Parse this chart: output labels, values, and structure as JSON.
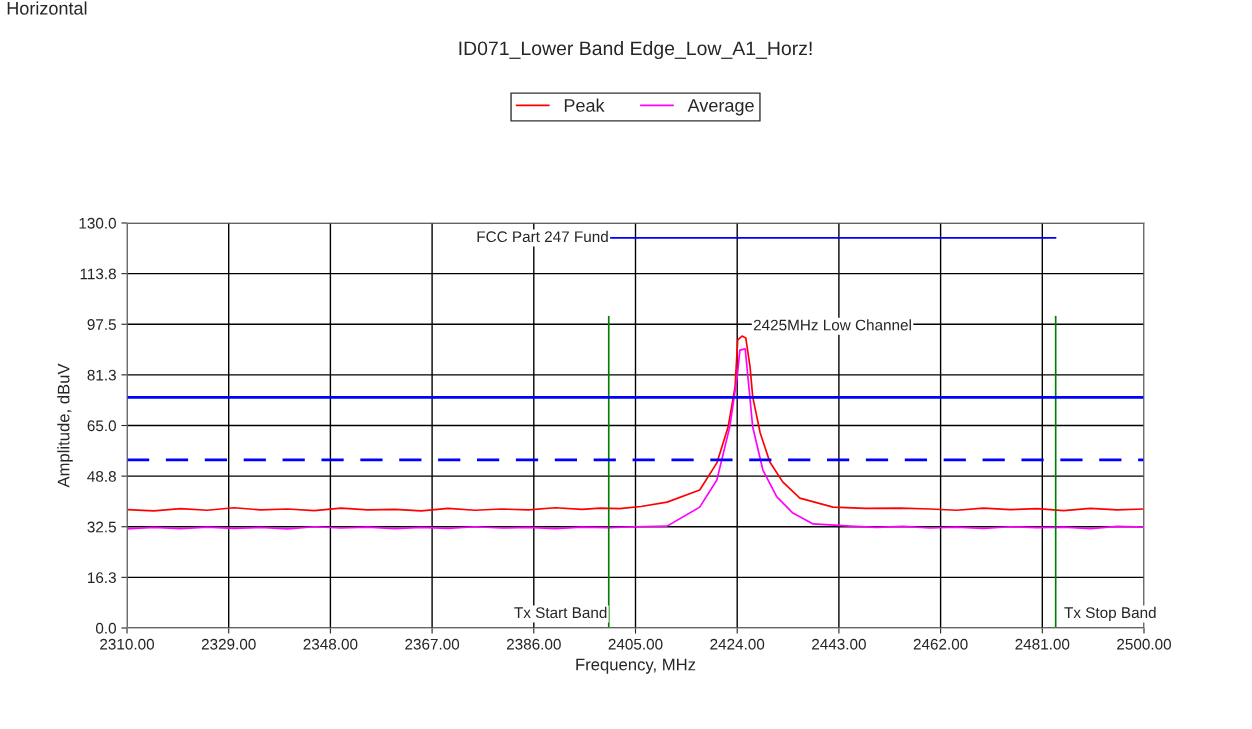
{
  "chart_data": {
    "type": "line",
    "title": "ID071_Lower Band Edge_Low_A1_Horz!",
    "xlabel": "Frequency, MHz",
    "ylabel": "Amplitude, dBuV",
    "xlim": [
      2310,
      2500
    ],
    "ylim": [
      0,
      130
    ],
    "xticks": [
      {
        "value": 2310,
        "label": "2310.00"
      },
      {
        "value": 2329,
        "label": "2329.00"
      },
      {
        "value": 2348,
        "label": "2348.00"
      },
      {
        "value": 2367,
        "label": "2367.00"
      },
      {
        "value": 2386,
        "label": "2386.00"
      },
      {
        "value": 2405,
        "label": "2405.00"
      },
      {
        "value": 2424,
        "label": "2424.00"
      },
      {
        "value": 2443,
        "label": "2443.00"
      },
      {
        "value": 2462,
        "label": "2462.00"
      },
      {
        "value": 2481,
        "label": "2481.00"
      },
      {
        "value": 2500,
        "label": "2500.00"
      }
    ],
    "yticks": [
      {
        "value": 0,
        "label": "0.0"
      },
      {
        "value": 16.25,
        "label": "16.3"
      },
      {
        "value": 32.5,
        "label": "32.5"
      },
      {
        "value": 48.75,
        "label": "48.8"
      },
      {
        "value": 65,
        "label": "65.0"
      },
      {
        "value": 81.25,
        "label": "81.3"
      },
      {
        "value": 97.5,
        "label": "97.5"
      },
      {
        "value": 113.75,
        "label": "113.8"
      },
      {
        "value": 130,
        "label": "130.0"
      }
    ],
    "grid": true,
    "legend": "top",
    "series": [
      {
        "name": "Peak",
        "color": "#ff0000",
        "x": [
          2310,
          2315,
          2320,
          2325,
          2330,
          2335,
          2340,
          2345,
          2350,
          2355,
          2360,
          2365,
          2370,
          2375,
          2380,
          2385,
          2390,
          2395,
          2398.4,
          2402,
          2406,
          2410.9,
          2417.0,
          2420.2,
          2422.3,
          2423.6,
          2424.1,
          2424.9,
          2425.6,
          2426.4,
          2426.9,
          2428.3,
          2430.1,
          2432.5,
          2435.7,
          2441.9,
          2448,
          2454.4,
          2460,
          2465,
          2470,
          2475,
          2480,
          2485,
          2490,
          2495,
          2500
        ],
        "values": [
          38.0,
          37.6,
          38.3,
          37.8,
          38.6,
          37.9,
          38.2,
          37.7,
          38.5,
          37.9,
          38.1,
          37.6,
          38.4,
          37.8,
          38.2,
          37.9,
          38.6,
          38.1,
          38.5,
          38.3,
          39.0,
          40.4,
          44.3,
          53.0,
          64.5,
          77.4,
          92.5,
          93.7,
          93.1,
          83.8,
          74.2,
          62.6,
          53.3,
          46.9,
          41.7,
          38.8,
          38.4,
          38.5,
          38.2,
          37.8,
          38.5,
          38.0,
          38.3,
          37.7,
          38.4,
          37.9,
          38.2
        ]
      },
      {
        "name": "Average",
        "color": "#ff00ff",
        "x": [
          2310,
          2315,
          2320,
          2325,
          2330,
          2335,
          2340,
          2345,
          2350,
          2355,
          2360,
          2365,
          2370,
          2375,
          2380,
          2385,
          2390,
          2395,
          2400,
          2405,
          2410.9,
          2417.0,
          2420.2,
          2422.6,
          2424.0,
          2424.5,
          2425.5,
          2426.0,
          2426.9,
          2428.8,
          2431.4,
          2434.4,
          2438.2,
          2445.1,
          2450,
          2455,
          2460,
          2465,
          2470,
          2475,
          2480,
          2485,
          2490,
          2495,
          2500
        ],
        "values": [
          31.8,
          32.3,
          31.9,
          32.4,
          32.0,
          32.3,
          31.8,
          32.5,
          32.1,
          32.4,
          31.9,
          32.3,
          32.0,
          32.5,
          32.1,
          32.3,
          31.9,
          32.4,
          32.2,
          32.5,
          32.7,
          38.8,
          47.5,
          64.5,
          80.6,
          89.2,
          89.6,
          80.6,
          64.5,
          50.7,
          42.1,
          36.9,
          33.4,
          32.7,
          32.3,
          32.6,
          32.1,
          32.4,
          32.0,
          32.5,
          32.2,
          32.4,
          31.9,
          32.6,
          32.4
        ]
      },
      {
        "color": "#0000ff",
        "x": [
          2400,
          2483.5
        ],
        "values": [
          125.2,
          125.2
        ]
      },
      {
        "color": "#008000",
        "x": [
          2400,
          2400
        ],
        "values": [
          0,
          100
        ]
      },
      {
        "color": "#008000",
        "x": [
          2483.5,
          2483.5
        ],
        "values": [
          0,
          100
        ]
      }
    ],
    "ref_lines": [
      {
        "axis": "y",
        "value": 74,
        "color": "#0000ff",
        "line_style": "solid"
      },
      {
        "axis": "y",
        "value": 54,
        "color": "#0000ff",
        "line_style": "dashed"
      }
    ],
    "annotations": [
      "Horizontal",
      {
        "text": "FCC Part 247 Fund",
        "x": 2400,
        "y": 125.2
      },
      {
        "text": "2425MHz Low Channel",
        "x": 2424.9,
        "y": 93.7
      },
      {
        "text": "Tx Start Band",
        "x": 2400,
        "y": 0
      },
      {
        "text": "Tx Stop Band",
        "x": 2483.5,
        "y": 0
      }
    ]
  }
}
